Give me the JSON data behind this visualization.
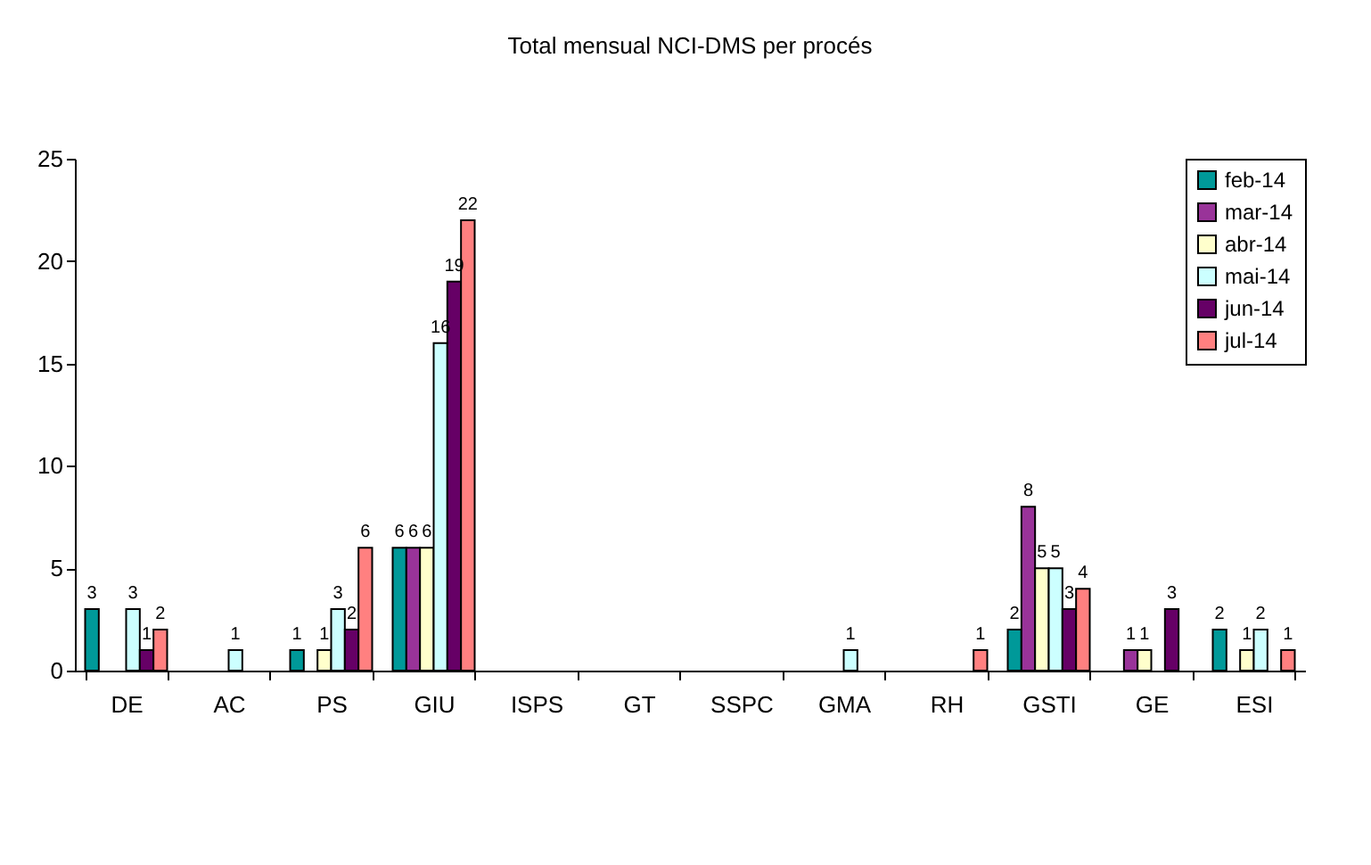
{
  "chart_data": {
    "type": "bar",
    "title": "Total mensual NCI-DMS per procés",
    "categories": [
      "DE",
      "AC",
      "PS",
      "GIU",
      "ISPS",
      "GT",
      "SSPC",
      "GMA",
      "RH",
      "GSTI",
      "GE",
      "ESI"
    ],
    "series": [
      {
        "name": "feb-14",
        "color": "#009999",
        "values": [
          3,
          null,
          1,
          6,
          null,
          null,
          null,
          null,
          null,
          2,
          null,
          2
        ]
      },
      {
        "name": "mar-14",
        "color": "#993399",
        "values": [
          null,
          null,
          null,
          6,
          null,
          null,
          null,
          null,
          null,
          8,
          1,
          null
        ]
      },
      {
        "name": "abr-14",
        "color": "#ffffcc",
        "values": [
          null,
          null,
          1,
          6,
          null,
          null,
          null,
          null,
          null,
          5,
          1,
          1
        ]
      },
      {
        "name": "mai-14",
        "color": "#ccffff",
        "values": [
          3,
          1,
          3,
          16,
          null,
          null,
          null,
          1,
          null,
          5,
          null,
          2
        ]
      },
      {
        "name": "jun-14",
        "color": "#660066",
        "values": [
          1,
          null,
          2,
          19,
          null,
          null,
          null,
          null,
          null,
          3,
          3,
          null
        ]
      },
      {
        "name": "jul-14",
        "color": "#ff8080",
        "values": [
          2,
          null,
          6,
          22,
          null,
          null,
          null,
          null,
          1,
          4,
          null,
          1
        ]
      }
    ],
    "ylim": [
      0,
      25
    ],
    "yticks": [
      0,
      5,
      10,
      15,
      20,
      25
    ],
    "grid": false,
    "legend": "top right",
    "data_labels": true
  }
}
